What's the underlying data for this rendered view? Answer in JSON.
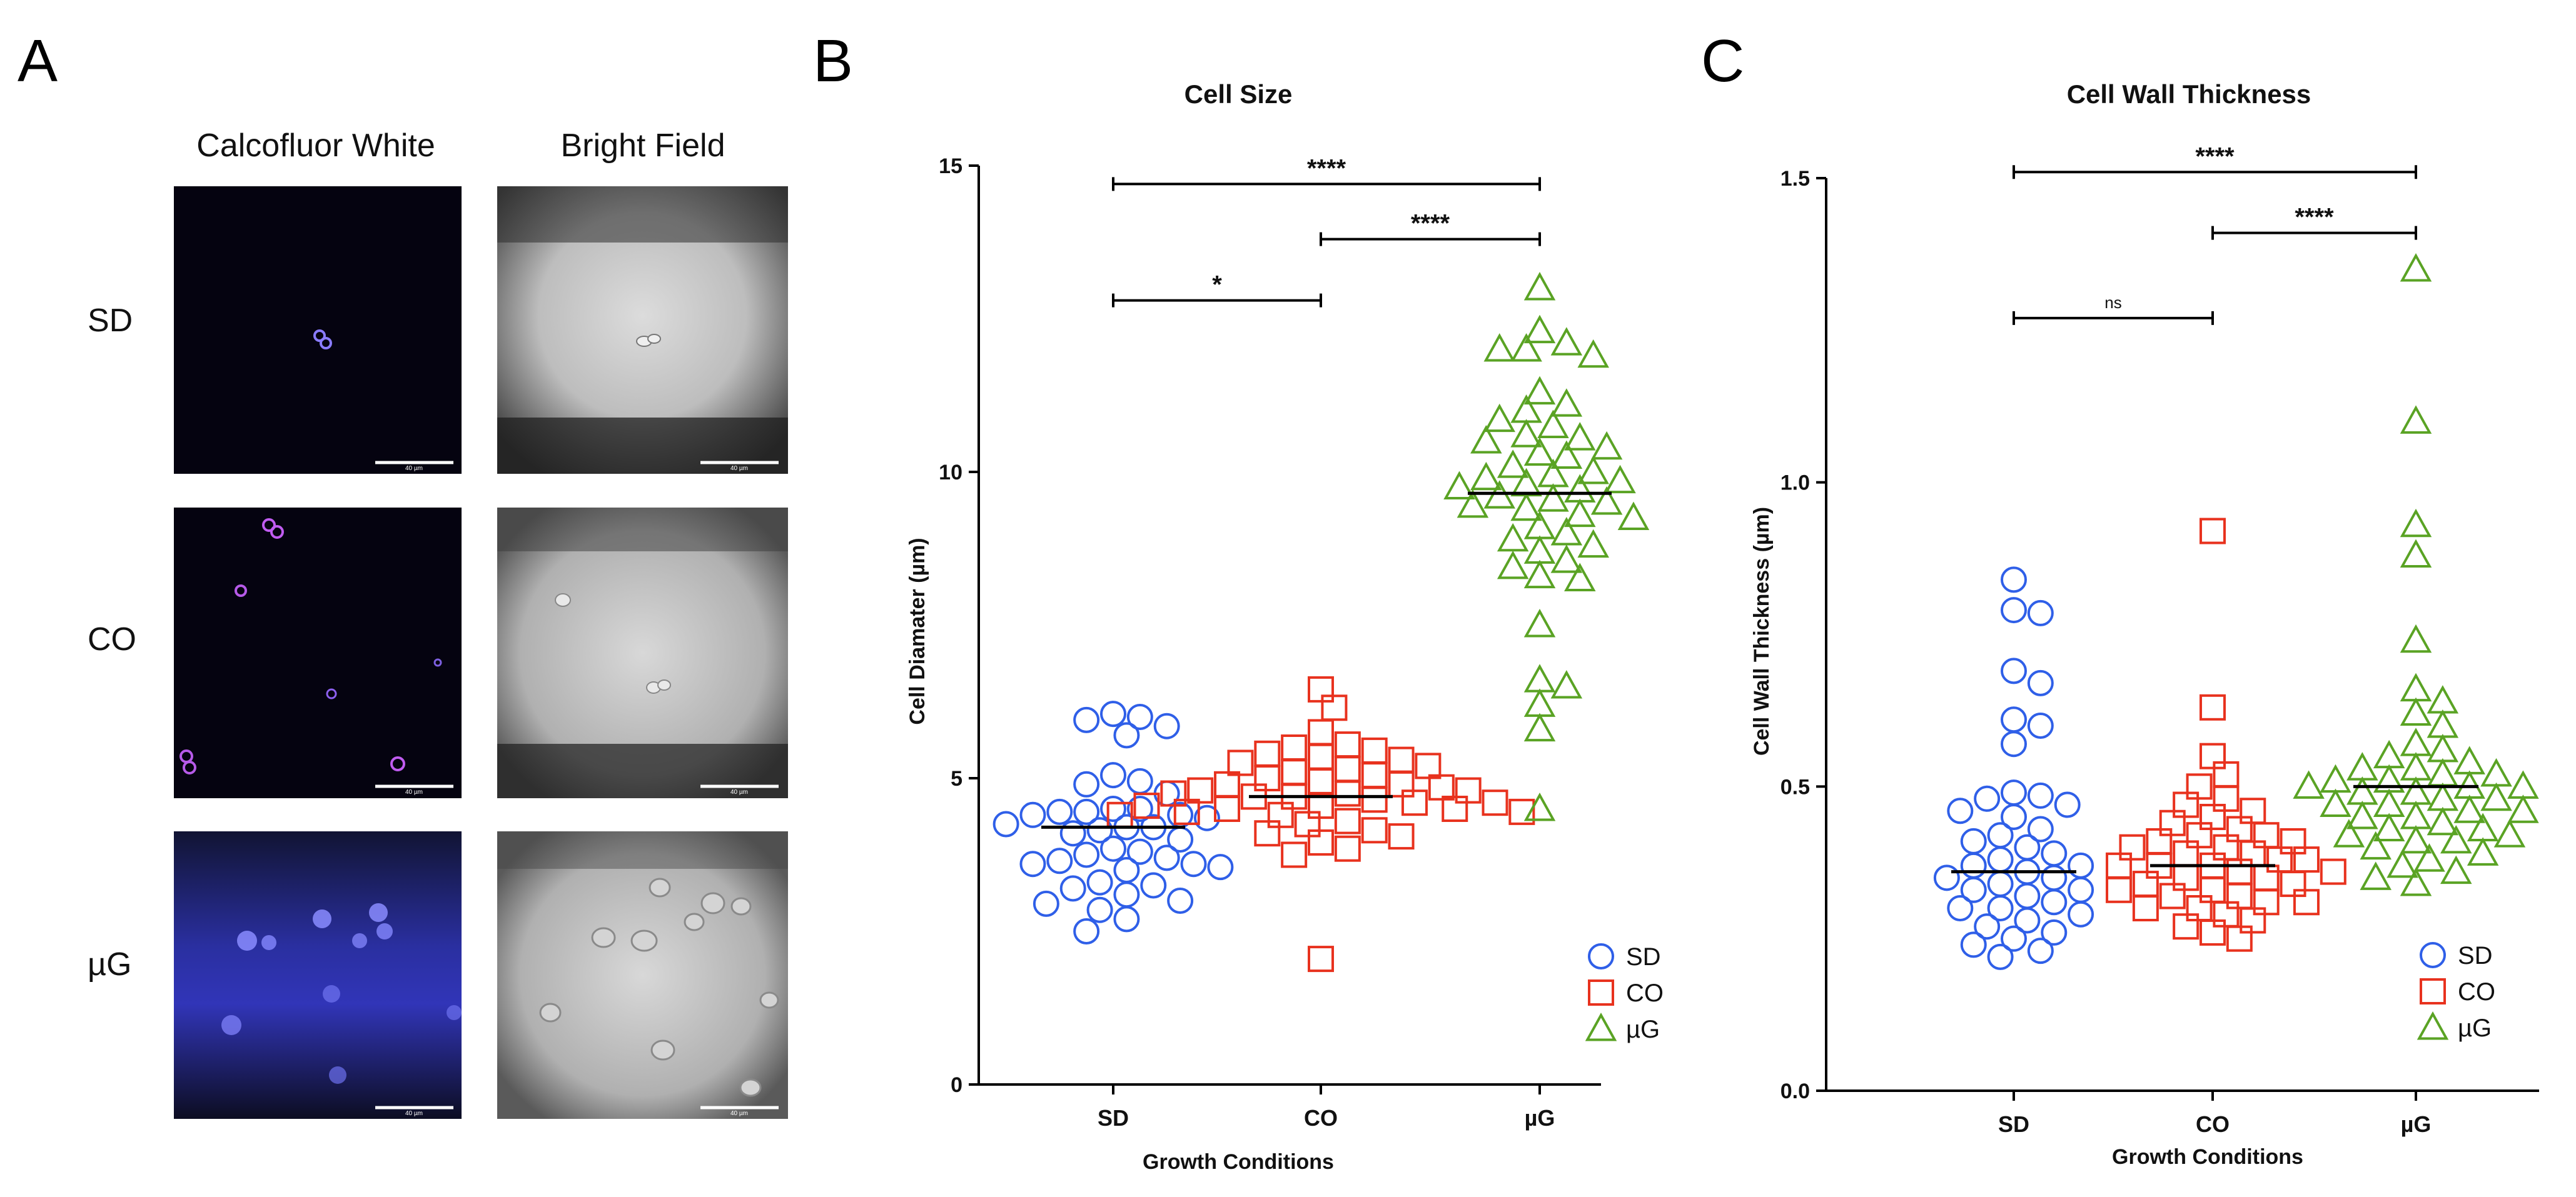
{
  "panels": {
    "A": {
      "letter": "A",
      "column_titles": [
        "Calcofluor White",
        "Bright Field"
      ],
      "row_labels": [
        "SD",
        "CO",
        "µG"
      ],
      "scale_bar_label": "40 µm"
    },
    "B": {
      "letter": "B"
    },
    "C": {
      "letter": "C"
    }
  },
  "chart_data": [
    {
      "type": "scatter",
      "title": "Cell Size",
      "xlabel": "Growth Conditions",
      "ylabel": "Cell Diamater (µm)",
      "ylim": [
        0,
        15
      ],
      "yticks": [
        0,
        5,
        10,
        15
      ],
      "categories": [
        "SD",
        "CO",
        "µG"
      ],
      "legend_position": "bottom-right",
      "series": [
        {
          "name": "SD",
          "marker": "circle",
          "color": "#2f5fe8",
          "median": 4.2,
          "values": [
            6.05,
            6.0,
            5.95,
            5.85,
            5.7,
            5.05,
            4.95,
            4.9,
            4.75,
            4.5,
            4.5,
            4.45,
            4.45,
            4.4,
            4.4,
            4.35,
            4.25,
            4.2,
            4.2,
            4.15,
            4.1,
            4.0,
            3.85,
            3.8,
            3.75,
            3.7,
            3.65,
            3.6,
            3.6,
            3.55,
            3.5,
            3.3,
            3.25,
            3.2,
            3.1,
            3.0,
            2.95,
            2.85,
            2.7,
            2.5
          ]
        },
        {
          "name": "CO",
          "marker": "square",
          "color": "#e8321e",
          "median": 4.7,
          "values": [
            6.45,
            6.15,
            5.75,
            5.55,
            5.5,
            5.45,
            5.4,
            5.35,
            5.3,
            5.25,
            5.2,
            5.15,
            5.1,
            5.05,
            5.0,
            4.95,
            4.9,
            4.9,
            4.85,
            4.8,
            4.8,
            4.75,
            4.75,
            4.7,
            4.7,
            4.65,
            4.6,
            4.6,
            4.55,
            4.55,
            4.5,
            4.5,
            4.45,
            4.45,
            4.4,
            4.4,
            4.3,
            4.25,
            4.15,
            4.1,
            4.05,
            3.95,
            3.85,
            3.75,
            2.05
          ]
        },
        {
          "name": "µG",
          "marker": "triangle",
          "color": "#5aa324",
          "median": 9.65,
          "values": [
            13.0,
            12.3,
            12.1,
            12.0,
            12.0,
            11.9,
            11.3,
            11.1,
            11.0,
            10.85,
            10.75,
            10.6,
            10.55,
            10.5,
            10.4,
            10.3,
            10.25,
            10.1,
            10.0,
            9.95,
            9.9,
            9.85,
            9.8,
            9.75,
            9.7,
            9.6,
            9.55,
            9.5,
            9.45,
            9.4,
            9.3,
            9.25,
            9.1,
            9.0,
            8.9,
            8.8,
            8.7,
            8.55,
            8.45,
            8.3,
            8.25,
            7.5,
            6.6,
            6.5,
            6.2,
            5.8,
            4.5
          ]
        }
      ],
      "comparisons": [
        {
          "from": "SD",
          "to": "CO",
          "label": "*",
          "y": 12.8
        },
        {
          "from": "CO",
          "to": "µG",
          "label": "****",
          "y": 13.8
        },
        {
          "from": "SD",
          "to": "µG",
          "label": "****",
          "y": 14.7
        }
      ]
    },
    {
      "type": "scatter",
      "title": "Cell Wall Thickness",
      "xlabel": "Growth Conditions",
      "ylabel": "Cell Wall Thickness (µm)",
      "ylim": [
        0,
        1.5
      ],
      "yticks": [
        0.0,
        0.5,
        1.0,
        1.5
      ],
      "categories": [
        "SD",
        "CO",
        "µG"
      ],
      "legend_position": "bottom-right",
      "series": [
        {
          "name": "SD",
          "marker": "circle",
          "color": "#2f5fe8",
          "median": 0.36,
          "values": [
            0.84,
            0.79,
            0.785,
            0.69,
            0.67,
            0.61,
            0.6,
            0.57,
            0.49,
            0.485,
            0.48,
            0.47,
            0.46,
            0.45,
            0.43,
            0.42,
            0.41,
            0.4,
            0.39,
            0.38,
            0.37,
            0.37,
            0.36,
            0.35,
            0.35,
            0.34,
            0.33,
            0.33,
            0.32,
            0.31,
            0.3,
            0.3,
            0.29,
            0.28,
            0.27,
            0.26,
            0.25,
            0.24,
            0.23,
            0.22
          ]
        },
        {
          "name": "CO",
          "marker": "square",
          "color": "#e8321e",
          "median": 0.37,
          "values": [
            0.92,
            0.63,
            0.55,
            0.52,
            0.5,
            0.48,
            0.47,
            0.46,
            0.45,
            0.44,
            0.43,
            0.42,
            0.42,
            0.41,
            0.41,
            0.4,
            0.4,
            0.39,
            0.39,
            0.38,
            0.38,
            0.37,
            0.37,
            0.37,
            0.36,
            0.36,
            0.35,
            0.35,
            0.34,
            0.34,
            0.33,
            0.33,
            0.32,
            0.32,
            0.31,
            0.31,
            0.3,
            0.3,
            0.29,
            0.28,
            0.27,
            0.26,
            0.25
          ]
        },
        {
          "name": "µG",
          "marker": "triangle",
          "color": "#5aa324",
          "median": 0.5,
          "values": [
            1.35,
            1.1,
            0.93,
            0.88,
            0.74,
            0.66,
            0.64,
            0.62,
            0.6,
            0.57,
            0.56,
            0.55,
            0.54,
            0.53,
            0.53,
            0.52,
            0.52,
            0.51,
            0.51,
            0.5,
            0.5,
            0.5,
            0.49,
            0.49,
            0.48,
            0.48,
            0.47,
            0.47,
            0.46,
            0.46,
            0.45,
            0.45,
            0.44,
            0.43,
            0.43,
            0.42,
            0.42,
            0.41,
            0.41,
            0.4,
            0.39,
            0.38,
            0.37,
            0.36,
            0.35,
            0.34
          ]
        }
      ],
      "comparisons": [
        {
          "from": "SD",
          "to": "CO",
          "label": "ns",
          "y": 1.27
        },
        {
          "from": "CO",
          "to": "µG",
          "label": "****",
          "y": 1.41
        },
        {
          "from": "SD",
          "to": "µG",
          "label": "****",
          "y": 1.51
        }
      ]
    }
  ]
}
